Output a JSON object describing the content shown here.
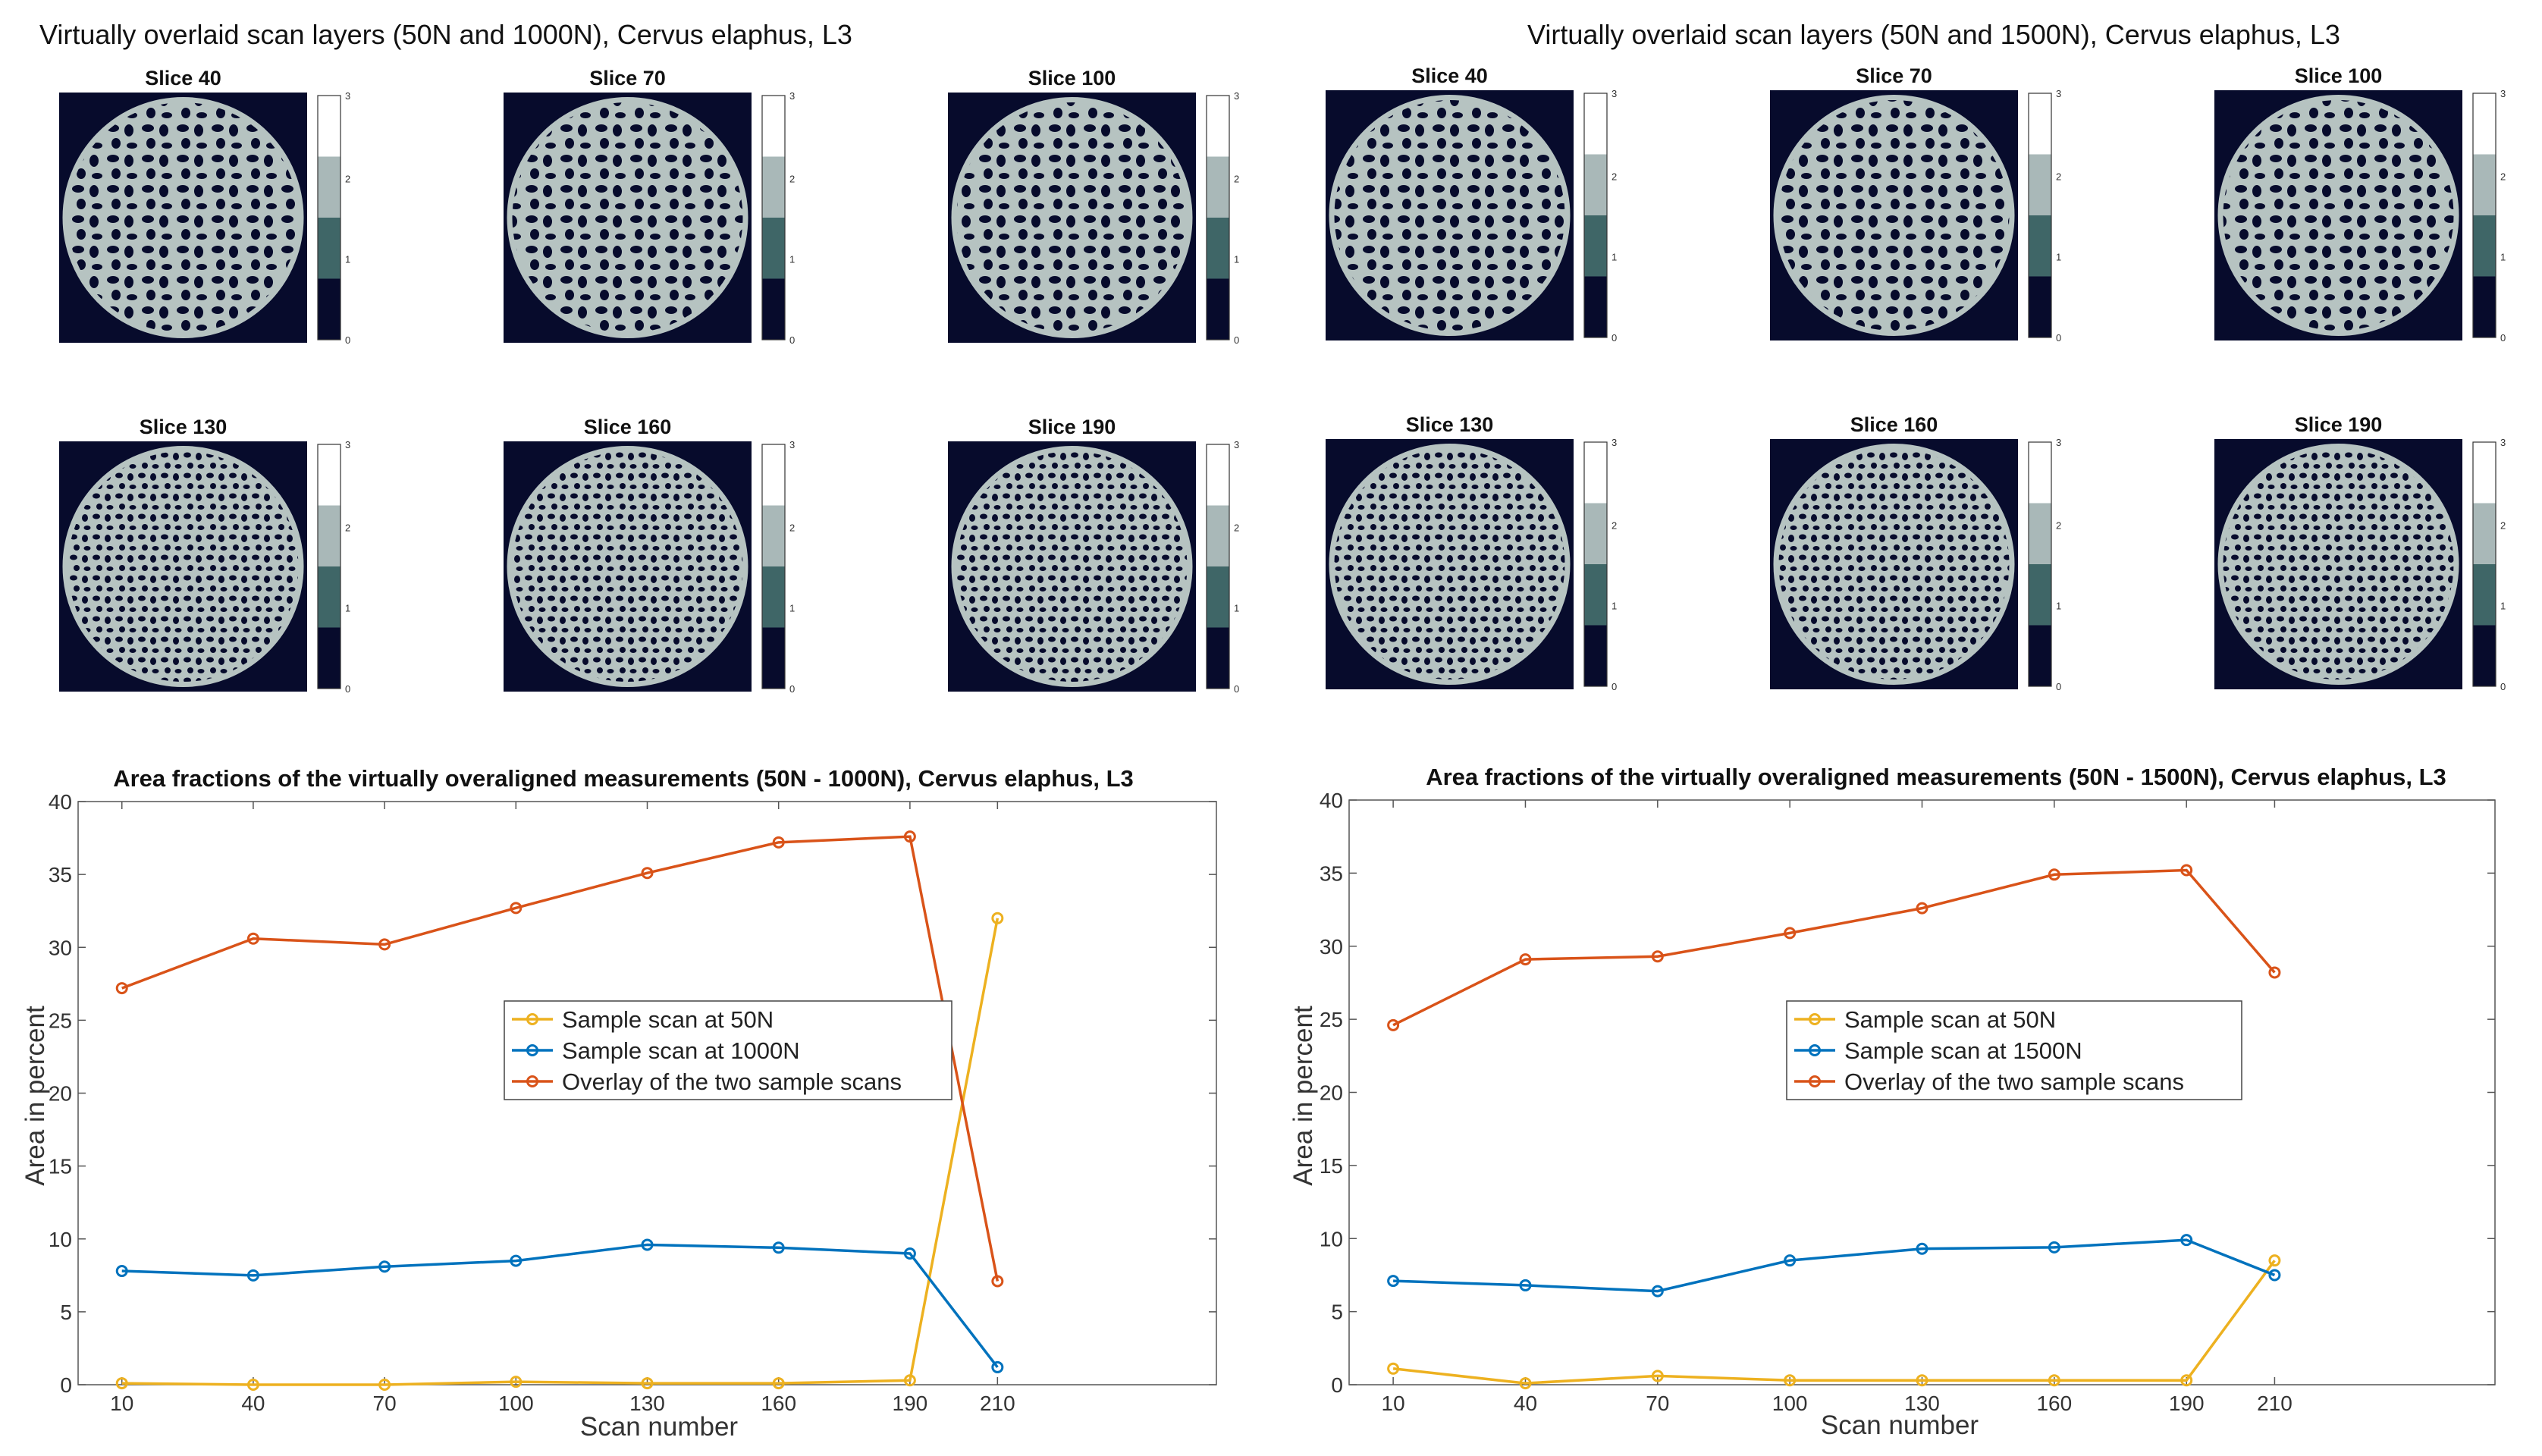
{
  "panels": [
    {
      "title": "Virtually overlaid scan layers (50N and 1000N), Cervus elaphus, L3",
      "slices": [
        "Slice 40",
        "Slice 70",
        "Slice 100",
        "Slice 130",
        "Slice 160",
        "Slice 190"
      ]
    },
    {
      "title": "Virtually overlaid scan layers (50N and 1500N), Cervus elaphus, L3",
      "slices": [
        "Slice 40",
        "Slice 70",
        "Slice 100",
        "Slice 130",
        "Slice 160",
        "Slice 190"
      ]
    }
  ],
  "colorbar": {
    "ticks": [
      "3",
      "2",
      "1",
      "0"
    ],
    "levels": [
      "#ffffff",
      "#a9b8b8",
      "#3f6667",
      "#070b2c"
    ]
  },
  "colors": {
    "scan_50N": "#edb120",
    "scan_high": "#0072bd",
    "overlay": "#d95319",
    "bone": "#b6c3c1",
    "background": "#070b2c"
  },
  "chart_data": [
    {
      "type": "line",
      "title": "Area fractions of the virtually overaligned measurements (50N - 1000N), Cervus elaphus, L3",
      "xlabel": "Scan number",
      "ylabel": "Area in percent",
      "x": [
        10,
        40,
        70,
        100,
        130,
        160,
        190,
        210
      ],
      "xlim": [
        0,
        260
      ],
      "ylim": [
        0,
        40
      ],
      "yticks": [
        0,
        5,
        10,
        15,
        20,
        25,
        30,
        35,
        40
      ],
      "legend_position": "center",
      "series": [
        {
          "name": "Sample scan at 50N",
          "color": "#edb120",
          "values": [
            0.1,
            0.0,
            0.0,
            0.2,
            0.1,
            0.1,
            0.3,
            32.0
          ]
        },
        {
          "name": "Sample scan at 1000N",
          "color": "#0072bd",
          "values": [
            7.8,
            7.5,
            8.1,
            8.5,
            9.6,
            9.4,
            9.0,
            1.2
          ]
        },
        {
          "name": "Overlay of the two sample scans",
          "color": "#d95319",
          "values": [
            27.2,
            30.6,
            30.2,
            32.7,
            35.1,
            37.2,
            37.6,
            7.1
          ]
        }
      ]
    },
    {
      "type": "line",
      "title": "Area fractions of the virtually overaligned measurements (50N - 1500N), Cervus elaphus, L3",
      "xlabel": "Scan number",
      "ylabel": "Area in percent",
      "x": [
        10,
        40,
        70,
        100,
        130,
        160,
        190,
        210
      ],
      "xlim": [
        0,
        260
      ],
      "ylim": [
        0,
        40
      ],
      "yticks": [
        0,
        5,
        10,
        15,
        20,
        25,
        30,
        35,
        40
      ],
      "legend_position": "center",
      "series": [
        {
          "name": "Sample scan at 50N",
          "color": "#edb120",
          "values": [
            1.1,
            0.1,
            0.6,
            0.3,
            0.3,
            0.3,
            0.3,
            8.5
          ]
        },
        {
          "name": "Sample scan at 1500N",
          "color": "#0072bd",
          "values": [
            7.1,
            6.8,
            6.4,
            8.5,
            9.3,
            9.4,
            9.9,
            7.5
          ]
        },
        {
          "name": "Overlay of the two sample scans",
          "color": "#d95319",
          "values": [
            24.6,
            29.1,
            29.3,
            30.9,
            32.6,
            34.9,
            35.2,
            28.2
          ]
        }
      ]
    }
  ]
}
